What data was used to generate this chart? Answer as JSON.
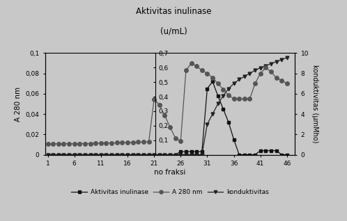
{
  "title_line1": "Aktivitas inulinase",
  "title_line2": "(u/mL)",
  "xlabel": "no fraksi",
  "ylabel_left": "A 280 nm",
  "ylabel_right": "konduktivitas (μmMho)",
  "x_ticks": [
    1,
    6,
    11,
    16,
    21,
    26,
    31,
    36,
    41,
    46
  ],
  "legend_labels": [
    "Aktivitas inulinase",
    "A 280 nm",
    "konduktivitas"
  ],
  "aktivitas_x": [
    1,
    2,
    3,
    4,
    5,
    6,
    7,
    8,
    9,
    10,
    11,
    12,
    13,
    14,
    15,
    16,
    17,
    18,
    19,
    20,
    21,
    22,
    23,
    24,
    25,
    26,
    27,
    28,
    29,
    30,
    31,
    32,
    33,
    34,
    35,
    36,
    37,
    38,
    39,
    40,
    41,
    42,
    43,
    44,
    45,
    46
  ],
  "aktivitas_y": [
    0,
    0,
    0,
    0,
    0,
    0,
    0,
    0,
    0,
    0,
    0,
    0,
    0,
    0,
    0,
    0,
    0,
    0,
    0,
    0,
    0,
    0,
    0,
    0,
    0,
    0.003,
    0.003,
    0.003,
    0.003,
    0.003,
    0.065,
    0.072,
    0.058,
    0.045,
    0.032,
    0.015,
    0,
    0,
    0,
    0,
    0.004,
    0.004,
    0.004,
    0.004,
    0,
    0
  ],
  "a280_x": [
    1,
    2,
    3,
    4,
    5,
    6,
    7,
    8,
    9,
    10,
    11,
    12,
    13,
    14,
    15,
    16,
    17,
    18,
    19,
    20,
    21,
    22,
    23,
    24,
    25,
    26,
    27,
    28,
    29,
    30,
    31,
    32,
    33,
    34,
    35,
    36,
    37,
    38,
    39,
    40,
    41,
    42,
    43,
    44,
    45,
    46
  ],
  "a280_y": [
    0.075,
    0.075,
    0.075,
    0.076,
    0.076,
    0.076,
    0.077,
    0.077,
    0.077,
    0.078,
    0.08,
    0.08,
    0.08,
    0.082,
    0.082,
    0.085,
    0.085,
    0.087,
    0.087,
    0.088,
    0.38,
    0.345,
    0.27,
    0.19,
    0.115,
    0.095,
    0.58,
    0.63,
    0.61,
    0.58,
    0.56,
    0.53,
    0.49,
    0.45,
    0.41,
    0.385,
    0.385,
    0.385,
    0.385,
    0.49,
    0.56,
    0.6,
    0.57,
    0.53,
    0.51,
    0.49
  ],
  "cond_x": [
    1,
    2,
    3,
    4,
    5,
    6,
    7,
    8,
    9,
    10,
    11,
    12,
    13,
    14,
    15,
    16,
    17,
    18,
    19,
    20,
    21,
    22,
    23,
    24,
    25,
    26,
    27,
    28,
    29,
    30,
    31,
    32,
    33,
    34,
    35,
    36,
    37,
    38,
    39,
    40,
    41,
    42,
    43,
    44,
    45,
    46
  ],
  "cond_y": [
    0,
    0,
    0,
    0,
    0,
    0,
    0,
    0,
    0,
    0,
    0,
    0,
    0,
    0,
    0,
    0,
    0,
    0,
    0,
    0,
    0,
    0,
    0,
    0,
    0,
    0,
    0,
    0,
    0,
    0,
    3.0,
    4.0,
    5.0,
    5.8,
    6.5,
    7.0,
    7.4,
    7.7,
    8.0,
    8.3,
    8.55,
    8.75,
    8.95,
    9.15,
    9.35,
    9.55
  ],
  "color_aktivitas": "#111111",
  "color_a280": "#555555",
  "color_cond": "#222222",
  "marker_aktivitas": "s",
  "marker_a280": "o",
  "marker_cond": "v",
  "bg_color": "#c8c8c8"
}
